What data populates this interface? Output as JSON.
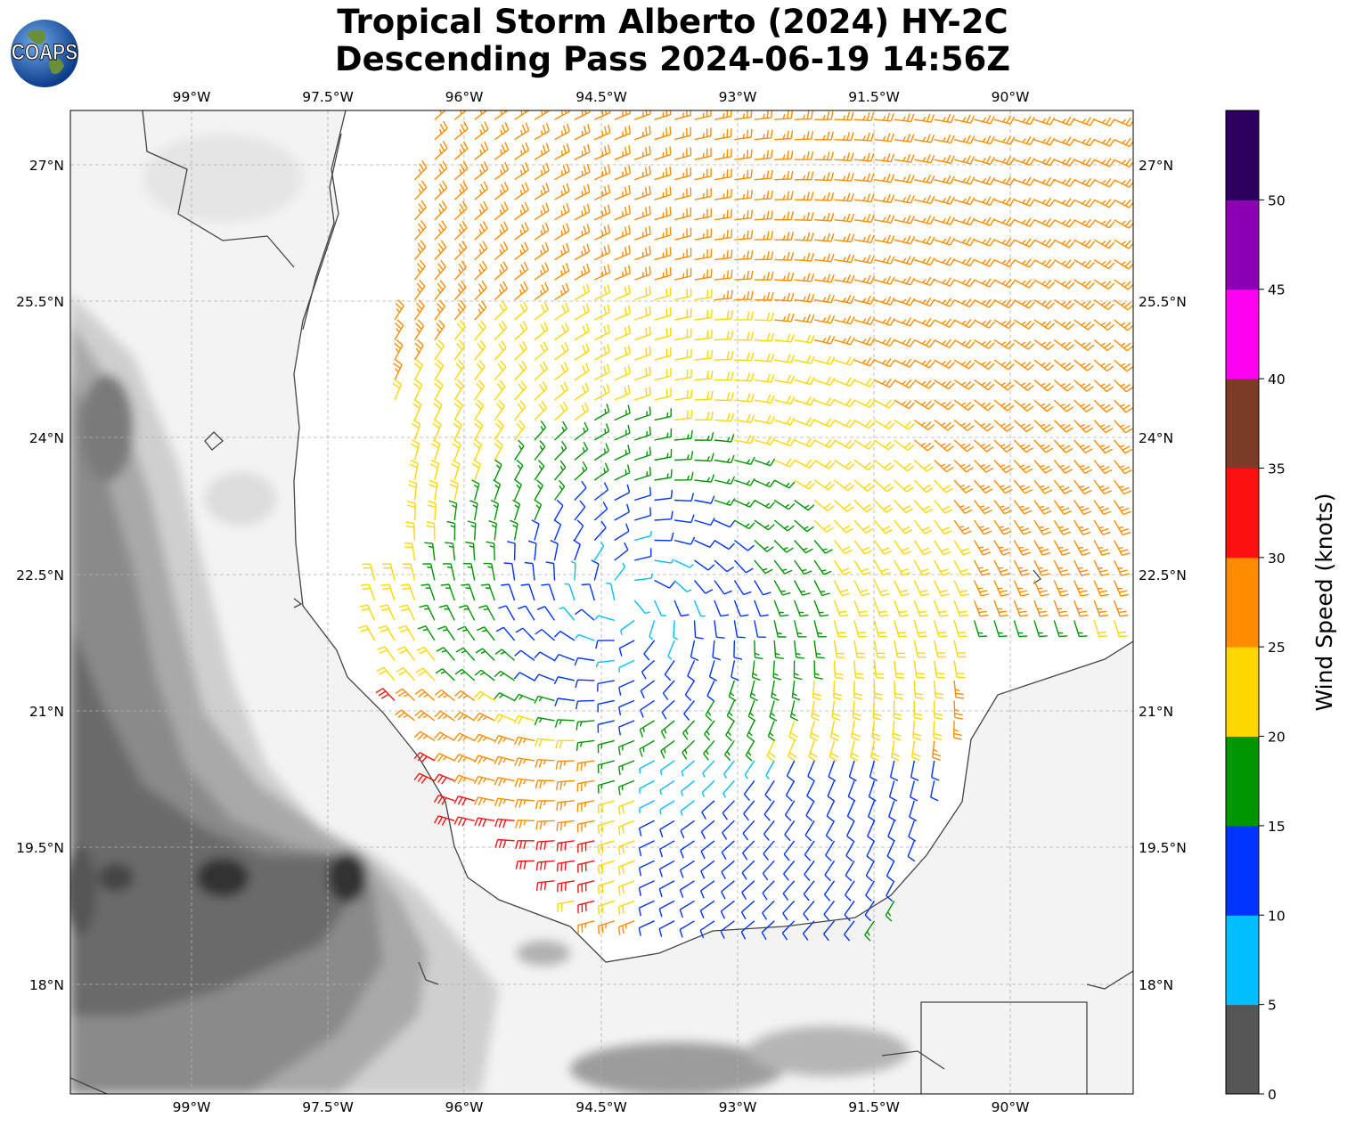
{
  "title": {
    "line1": "Tropical Storm Alberto (2024) HY-2C",
    "line2": "Descending Pass 2024-06-19 14:56Z"
  },
  "logo": {
    "text": "COAPS",
    "icon": "globe-icon"
  },
  "colors": {
    "land_light": "#f6f6f6",
    "land_dark": "#3a3a3a",
    "ocean": "#ffffff",
    "coast": "#444444",
    "grid": "#b0b0b0"
  },
  "chart_data": {
    "type": "wind-barbs",
    "lon_range": [
      -100.35,
      -88.65
    ],
    "lat_range": [
      16.8,
      27.6
    ],
    "x_ticks": [
      "99°W",
      "97.5°W",
      "96°W",
      "94.5°W",
      "93°W",
      "91.5°W",
      "90°W"
    ],
    "x_tick_values": [
      -99,
      -97.5,
      -96,
      -94.5,
      -93,
      -91.5,
      -90
    ],
    "y_ticks": [
      "27°N",
      "25.5°N",
      "24°N",
      "22.5°N",
      "21°N",
      "19.5°N",
      "18°N"
    ],
    "y_tick_values": [
      27,
      25.5,
      24,
      22.5,
      21,
      19.5,
      18
    ],
    "grid": true,
    "storm_center": {
      "lon": -94.2,
      "lat": 22.2
    },
    "colorbar": {
      "label": "Wind Speed (knots)",
      "bounds": [
        0,
        5,
        10,
        15,
        20,
        25,
        30,
        35,
        40,
        45,
        50,
        55
      ],
      "tick_labels": [
        "0",
        "5",
        "10",
        "15",
        "20",
        "25",
        "30",
        "35",
        "40",
        "45",
        "50"
      ],
      "colors": [
        "#555555",
        "#00bfff",
        "#0033ff",
        "#009600",
        "#ffd700",
        "#ff8c00",
        "#ff1010",
        "#7d3a26",
        "#ff00f0",
        "#8c00b4",
        "#2d0060"
      ]
    }
  }
}
